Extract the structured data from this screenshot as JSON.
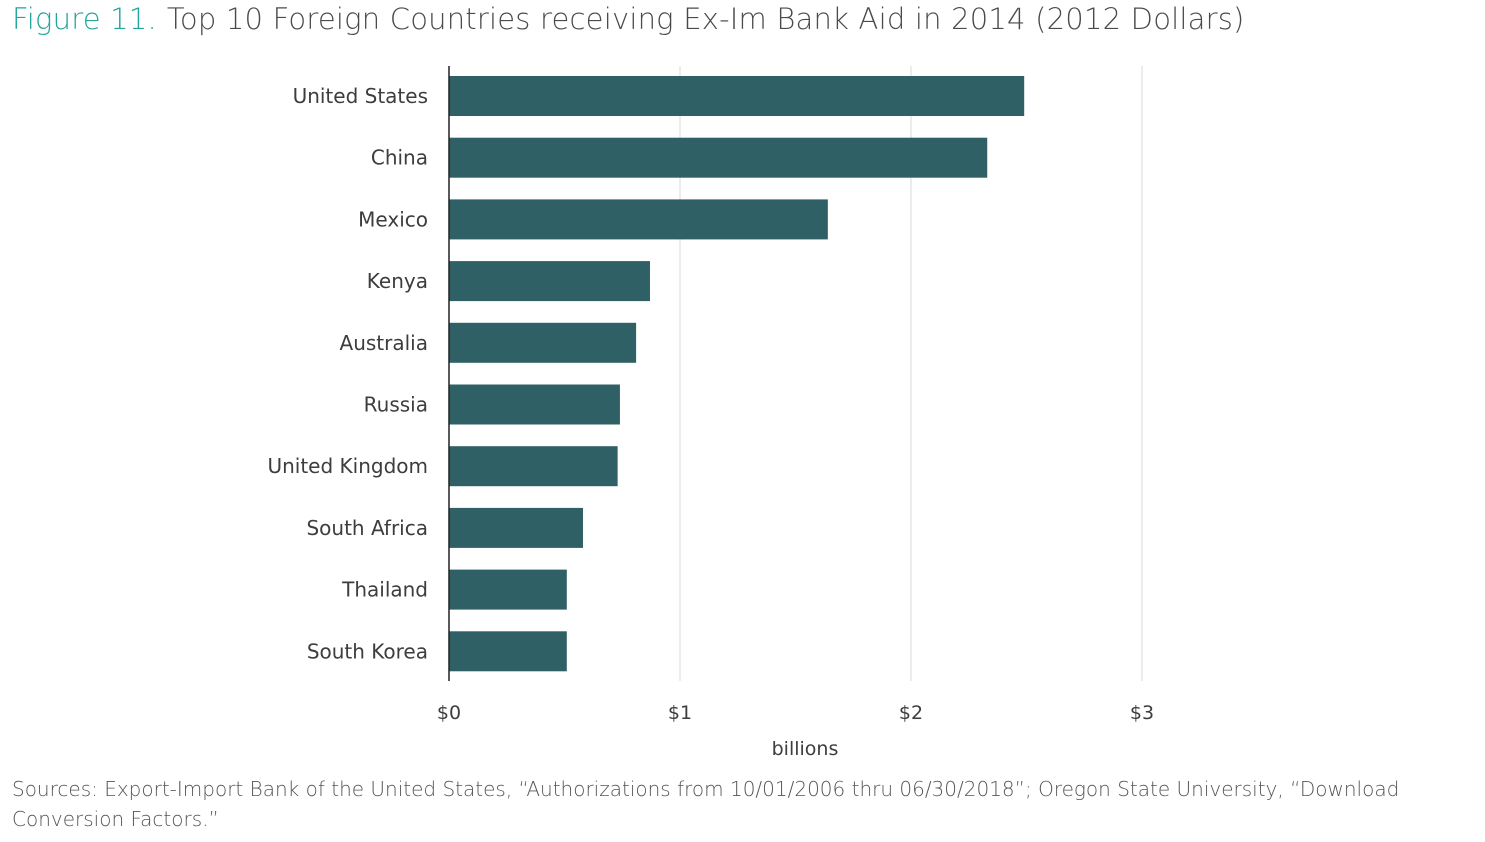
{
  "figure_label": "Figure 11.",
  "figure_title": "Top 10 Foreign Countries receiving Ex-Im Bank Aid in 2014 (2012 Dollars)",
  "sources": "Sources: Export-Import Bank of the United States, “Authorizations from 10/01/2006 thru 06/30/2018”; Oregon State University, “Download Conversion Factors.”",
  "colors": {
    "bar": "#2f6065",
    "accent": "#21a59c",
    "text": "#3d3d3d",
    "grid": "#d9d9d9",
    "axis": "#222222"
  },
  "chart_data": {
    "type": "bar",
    "orientation": "horizontal",
    "categories": [
      "United States",
      "China",
      "Mexico",
      "Kenya",
      "Australia",
      "Russia",
      "United Kingdom",
      "South Africa",
      "Thailand",
      "South Korea"
    ],
    "values": [
      2.49,
      2.33,
      1.64,
      0.87,
      0.81,
      0.74,
      0.73,
      0.58,
      0.51,
      0.51
    ],
    "xlabel": "billions",
    "ylabel": "",
    "xticks": [
      0,
      1,
      2,
      3
    ],
    "xtick_labels": [
      "$0",
      "$1",
      "$2",
      "$3"
    ],
    "xlim": [
      0,
      3
    ],
    "grid": "vertical"
  }
}
